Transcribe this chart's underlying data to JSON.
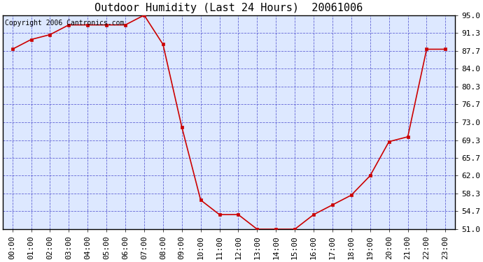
{
  "title": "Outdoor Humidity (Last 24 Hours)  20061006",
  "copyright_text": "Copyright 2006 Cantronics.com",
  "x_labels": [
    "00:00",
    "01:00",
    "02:00",
    "03:00",
    "04:00",
    "05:00",
    "06:00",
    "07:00",
    "08:00",
    "09:00",
    "10:00",
    "11:00",
    "12:00",
    "13:00",
    "14:00",
    "15:00",
    "16:00",
    "17:00",
    "18:00",
    "19:00",
    "20:00",
    "21:00",
    "22:00",
    "23:00"
  ],
  "y_values": [
    88,
    90,
    91,
    93,
    93,
    93,
    93,
    95,
    89,
    72,
    57,
    54,
    54,
    51,
    51,
    51,
    54,
    56,
    58,
    62,
    69,
    70,
    88,
    88
  ],
  "y_min": 51.0,
  "y_max": 95.0,
  "y_ticks": [
    51.0,
    54.7,
    58.3,
    62.0,
    65.7,
    69.3,
    73.0,
    76.7,
    80.3,
    84.0,
    87.7,
    91.3,
    95.0
  ],
  "line_color": "#cc0000",
  "marker_color": "#cc0000",
  "background_color": "#ffffff",
  "plot_bg_color": "#dde8ff",
  "grid_color": "#4444cc",
  "border_color": "#000000",
  "title_fontsize": 11,
  "copyright_fontsize": 7,
  "tick_fontsize": 8,
  "tick_label_font": "monospace"
}
